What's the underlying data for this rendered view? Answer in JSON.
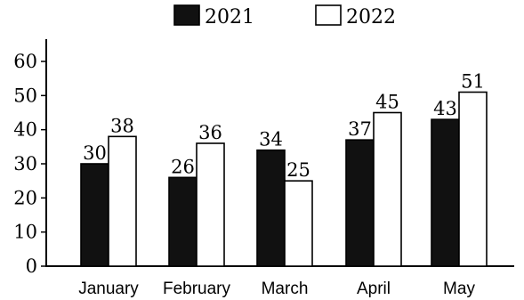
{
  "chart_data": {
    "type": "bar",
    "categories": [
      "January",
      "February",
      "March",
      "April",
      "May"
    ],
    "series": [
      {
        "name": "2021",
        "values": [
          30,
          26,
          34,
          37,
          43
        ],
        "color": "#111111"
      },
      {
        "name": "2022",
        "values": [
          38,
          36,
          25,
          45,
          51
        ],
        "color": "#ffffff"
      }
    ],
    "y_ticks": [
      "0",
      "10",
      "20",
      "30",
      "40",
      "50",
      "60"
    ],
    "ylim": [
      0,
      60
    ],
    "title": "",
    "xlabel": "",
    "ylabel": "",
    "grid": false,
    "legend_position": "top-center",
    "data_labels": true
  }
}
